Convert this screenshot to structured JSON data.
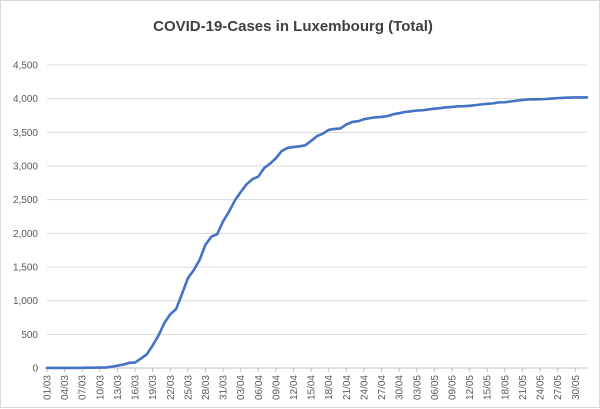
{
  "chart_data": {
    "type": "line",
    "title": "COVID-19-Cases in Luxembourg (Total)",
    "xlabel": "",
    "ylabel": "",
    "ylim": [
      0,
      4500
    ],
    "yticks": [
      0,
      500,
      1000,
      1500,
      2000,
      2500,
      3000,
      3500,
      4000,
      4500
    ],
    "ytick_labels": [
      "0",
      "500",
      "1,000",
      "1,500",
      "2,000",
      "2,500",
      "3,000",
      "3,500",
      "4,000",
      "4,500"
    ],
    "xtick_labels": [
      "01/03",
      "04/03",
      "07/03",
      "10/03",
      "13/03",
      "16/03",
      "19/03",
      "22/03",
      "25/03",
      "28/03",
      "31/03",
      "03/04",
      "06/04",
      "09/04",
      "12/04",
      "15/04",
      "18/04",
      "21/04",
      "24/04",
      "27/04",
      "30/04",
      "03/05",
      "06/05",
      "09/05",
      "12/05",
      "15/05",
      "18/05",
      "21/05",
      "24/05",
      "27/05",
      "30/05"
    ],
    "grid": "horizontal",
    "legend": "none",
    "line_color": "#4472c4",
    "series": [
      {
        "x": [
          "01/03",
          "02/03",
          "03/03",
          "04/03",
          "05/03",
          "06/03",
          "07/03",
          "08/03",
          "09/03",
          "10/03",
          "11/03",
          "12/03",
          "13/03",
          "14/03",
          "15/03",
          "16/03",
          "17/03",
          "18/03",
          "19/03",
          "20/03",
          "21/03",
          "22/03",
          "23/03",
          "24/03",
          "25/03",
          "26/03",
          "27/03",
          "28/03",
          "29/03",
          "30/03",
          "31/03",
          "01/04",
          "02/04",
          "03/04",
          "04/04",
          "05/04",
          "06/04",
          "07/04",
          "08/04",
          "09/04",
          "10/04",
          "11/04",
          "12/04",
          "13/04",
          "14/04",
          "15/04",
          "16/04",
          "17/04",
          "18/04",
          "19/04",
          "20/04",
          "21/04",
          "22/04",
          "23/04",
          "24/04",
          "25/04",
          "26/04",
          "27/04",
          "28/04",
          "29/04",
          "30/04",
          "01/05",
          "02/05",
          "03/05",
          "04/05",
          "05/05",
          "06/05",
          "07/05",
          "08/05",
          "09/05",
          "10/05",
          "11/05",
          "12/05",
          "13/05",
          "14/05",
          "15/05",
          "16/05",
          "17/05",
          "18/05",
          "19/05",
          "20/05",
          "21/05",
          "22/05",
          "23/05",
          "24/05",
          "25/05",
          "26/05",
          "27/05",
          "28/05",
          "29/05",
          "30/05",
          "31/05",
          "01/06"
        ],
        "values": [
          1,
          1,
          1,
          1,
          1,
          1,
          3,
          4,
          5,
          7,
          7,
          19,
          34,
          51,
          77,
          81,
          140,
          203,
          335,
          484,
          670,
          798,
          875,
          1099,
          1333,
          1453,
          1605,
          1831,
          1950,
          1988,
          2178,
          2319,
          2487,
          2612,
          2729,
          2804,
          2843,
          2970,
          3034,
          3115,
          3223,
          3270,
          3281,
          3292,
          3307,
          3373,
          3444,
          3480,
          3537,
          3550,
          3558,
          3618,
          3654,
          3665,
          3695,
          3711,
          3723,
          3729,
          3741,
          3769,
          3784,
          3802,
          3812,
          3824,
          3828,
          3840,
          3851,
          3859,
          3871,
          3877,
          3886,
          3888,
          3894,
          3904,
          3915,
          3923,
          3930,
          3945,
          3947,
          3958,
          3971,
          3981,
          3988,
          3990,
          3993,
          3995,
          4001,
          4008,
          4012,
          4016,
          4018,
          4019,
          4020
        ]
      }
    ]
  }
}
